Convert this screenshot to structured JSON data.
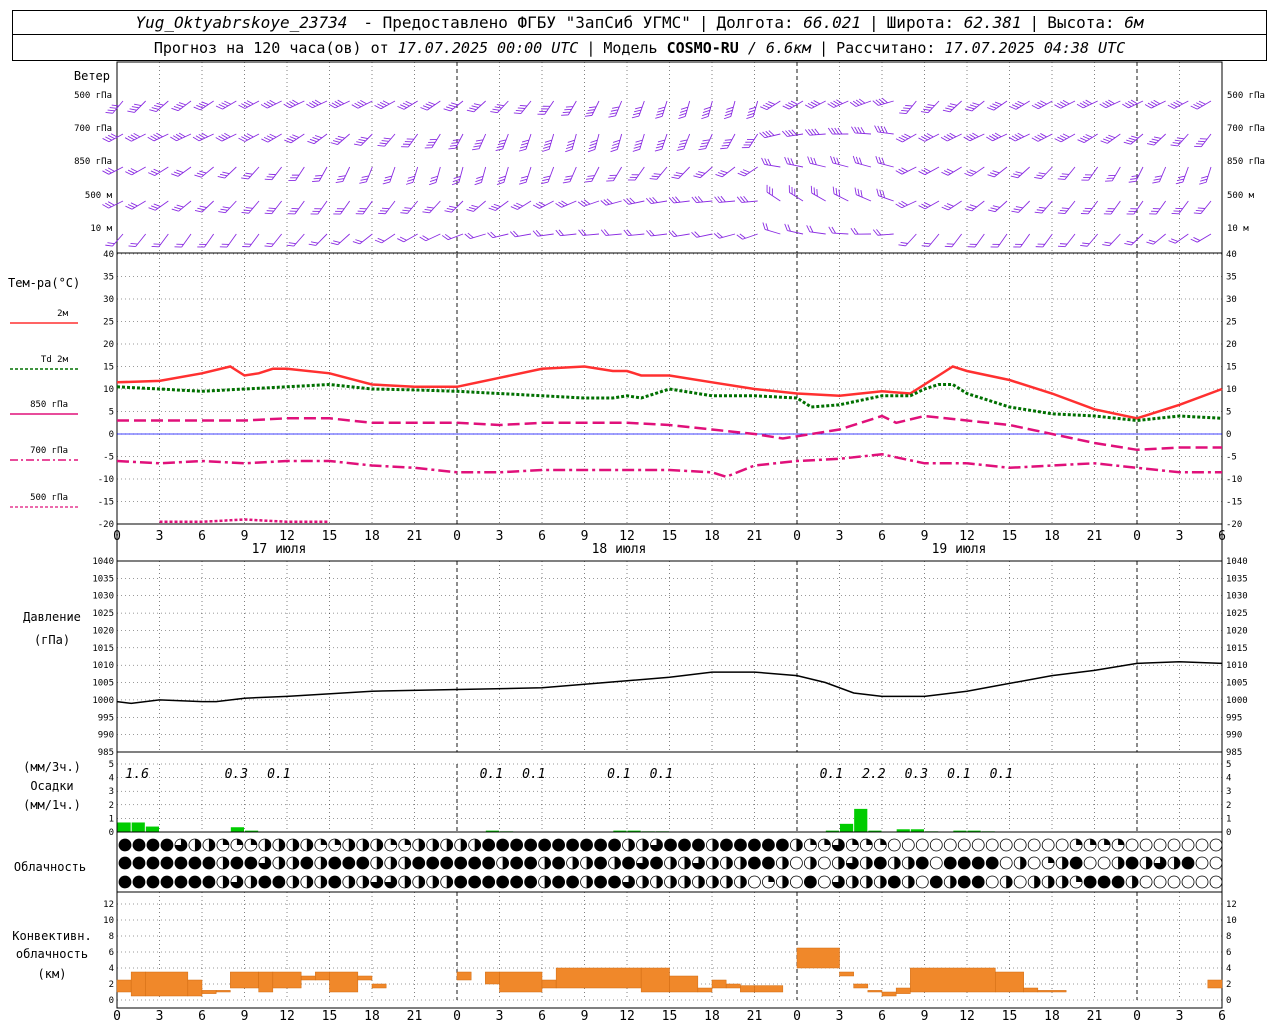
{
  "header": {
    "station": "Yug_Oktyabrskoye_23734",
    "provided": "- Предоставлено ФГБУ \"ЗапСиб УГМС\"",
    "lon_label": "Долгота:",
    "lon": "66.021",
    "lat_label": "Широта:",
    "lat": "62.381",
    "alt_label": "Высота:",
    "alt": "6м",
    "forecast_label": "Прогноз на 120 часа(ов) от",
    "forecast_from": "17.07.2025 00:00 UTC",
    "model_label": "Модель",
    "model": "COSMO-RU",
    "resolution": "/ 6.6км",
    "calc_label": "Рассчитано:",
    "calc_time": "17.07.2025 04:38 UTC"
  },
  "panels": {
    "wind": {
      "title": "Ветер",
      "levels": [
        "500 гПа",
        "700 гПа",
        "850 гПа",
        "500 м",
        "10  м"
      ],
      "barb_color": "#8a2be2"
    },
    "temp": {
      "title": "Тем-ра(°С)",
      "legend": [
        "2м",
        "Td  2м",
        "850 гПа",
        "700 гПа",
        "500 гПа"
      ],
      "yticks": [
        40,
        35,
        30,
        25,
        20,
        15,
        10,
        5,
        0,
        -5,
        -10,
        -15,
        -20
      ]
    },
    "pressure": {
      "title": "Давление",
      "unit": "(гПа)",
      "yticks": [
        1040,
        1035,
        1030,
        1025,
        1020,
        1015,
        1010,
        1005,
        1000,
        995,
        990,
        985
      ]
    },
    "precip": {
      "unit_3h": "(мм/3ч.)",
      "title": "Осадки",
      "unit_1h": "(мм/1ч.)",
      "yticks": [
        5,
        4,
        3,
        2,
        1,
        0
      ],
      "labels": [
        {
          "h": 1,
          "text": "1.6"
        },
        {
          "h": 8,
          "text": "0.3"
        },
        {
          "h": 11,
          "text": "0.1"
        },
        {
          "h": 26,
          "text": "0.1"
        },
        {
          "h": 29,
          "text": "0.1"
        },
        {
          "h": 35,
          "text": "0.1"
        },
        {
          "h": 38,
          "text": "0.1"
        },
        {
          "h": 50,
          "text": "0.1"
        },
        {
          "h": 53,
          "text": "2.2"
        },
        {
          "h": 56,
          "text": "0.3"
        },
        {
          "h": 59,
          "text": "0.1"
        },
        {
          "h": 62,
          "text": "0.1"
        }
      ]
    },
    "cloud": {
      "title": "Облачность"
    },
    "conv": {
      "title1": "Конвективн.",
      "title2": "облачность",
      "unit": "(км)",
      "yticks": [
        12,
        10,
        8,
        6,
        4,
        2,
        0
      ]
    }
  },
  "x_axis": {
    "hour_labels": [
      "0",
      "3",
      "6",
      "9",
      "12",
      "15",
      "18",
      "21",
      "0",
      "3",
      "6",
      "9",
      "12",
      "15",
      "18",
      "21",
      "0",
      "3",
      "6",
      "9",
      "12",
      "15",
      "18",
      "21",
      "0",
      "3",
      "6"
    ],
    "day_labels": [
      {
        "h": 12,
        "text": "17 июля"
      },
      {
        "h": 36,
        "text": "18 июля"
      },
      {
        "h": 60,
        "text": "19 июля"
      }
    ]
  },
  "colors": {
    "t2m": "#ff3030",
    "td2m": "#007000",
    "t850": "#e0107a",
    "t700": "#e0107a",
    "t500": "#e0107a",
    "zero_line": "#0000ff",
    "precip": "#00cc00",
    "conv": "#f0882a"
  },
  "chart_data": [
    {
      "type": "line",
      "title": "Тем-ра(°С)",
      "x_unit": "hours from 17.07.2025 00:00 UTC",
      "ylim": [
        -20,
        40
      ],
      "series": [
        {
          "name": "2м",
          "x": [
            0,
            3,
            6,
            8,
            9,
            10,
            11,
            12,
            15,
            18,
            21,
            24,
            27,
            30,
            33,
            35,
            36,
            37,
            39,
            42,
            45,
            48,
            51,
            54,
            56,
            57,
            58,
            59,
            60,
            63,
            66,
            69,
            72,
            75,
            78
          ],
          "values": [
            11.5,
            11.8,
            13.5,
            15,
            13,
            13.5,
            14.5,
            14.5,
            13.5,
            11,
            10.5,
            10.5,
            12.5,
            14.5,
            15,
            14,
            14,
            13,
            13,
            11.5,
            10,
            9,
            8.5,
            9.5,
            9,
            11,
            13,
            15,
            14,
            12,
            9,
            5.5,
            3.5,
            6.5,
            10
          ]
        },
        {
          "name": "Td  2м",
          "x": [
            0,
            3,
            6,
            9,
            12,
            15,
            18,
            21,
            24,
            27,
            30,
            33,
            35,
            36,
            37,
            39,
            42,
            45,
            48,
            49,
            51,
            54,
            56,
            57,
            58,
            59,
            60,
            63,
            66,
            69,
            72,
            75,
            78
          ],
          "values": [
            10.5,
            10,
            9.5,
            10,
            10.5,
            11,
            10,
            9.8,
            9.5,
            9,
            8.5,
            8,
            8,
            8.5,
            8,
            10,
            8.5,
            8.5,
            8,
            6,
            6.5,
            8.5,
            8.5,
            10,
            11,
            11,
            9,
            6,
            4.5,
            4,
            3,
            4,
            3.5
          ]
        },
        {
          "name": "850 гПа",
          "x": [
            0,
            3,
            6,
            9,
            12,
            15,
            18,
            21,
            24,
            27,
            30,
            33,
            36,
            39,
            42,
            45,
            47,
            48,
            51,
            54,
            55,
            57,
            60,
            63,
            66,
            69,
            72,
            75,
            78
          ],
          "values": [
            3,
            3,
            3,
            3,
            3.5,
            3.5,
            2.5,
            2.5,
            2.5,
            2,
            2.5,
            2.5,
            2.5,
            2,
            1,
            0,
            -1,
            -0.5,
            1,
            4,
            2.5,
            4,
            3,
            2,
            0,
            -2,
            -3.5,
            -3,
            -3
          ]
        },
        {
          "name": "700 гПа",
          "x": [
            0,
            3,
            6,
            9,
            12,
            15,
            18,
            21,
            24,
            27,
            30,
            33,
            36,
            39,
            42,
            43,
            45,
            48,
            51,
            54,
            57,
            60,
            63,
            66,
            69,
            72,
            75,
            78
          ],
          "values": [
            -6,
            -6.5,
            -6,
            -6.5,
            -6,
            -6,
            -7,
            -7.5,
            -8.5,
            -8.5,
            -8,
            -8,
            -8,
            -8,
            -8.5,
            -9.5,
            -7,
            -6,
            -5.5,
            -4.5,
            -6.5,
            -6.5,
            -7.5,
            -7,
            -6.5,
            -7.5,
            -8.5,
            -8.5
          ]
        },
        {
          "name": "500 гПа",
          "x": [
            3,
            6,
            9,
            12,
            15
          ],
          "values": [
            -19.5,
            -19.5,
            -19,
            -19.5,
            -19.5
          ]
        }
      ]
    },
    {
      "type": "line",
      "title": "Давление",
      "ylabel": "(гПа)",
      "ylim": [
        985,
        1040
      ],
      "series": [
        {
          "name": "",
          "x": [
            0,
            1,
            3,
            6,
            7,
            9,
            12,
            18,
            24,
            30,
            33,
            36,
            39,
            42,
            45,
            48,
            50,
            52,
            54,
            57,
            60,
            62,
            66,
            69,
            72,
            75,
            78
          ],
          "values": [
            999.5,
            999,
            1000,
            999.5,
            999.5,
            1000.5,
            1001,
            1002.5,
            1003,
            1003.5,
            1004.5,
            1005.5,
            1006.5,
            1008,
            1008,
            1007,
            1005,
            1002,
            1001,
            1001,
            1002.5,
            1004,
            1007,
            1008.5,
            1010.5,
            1011,
            1010.5
          ]
        }
      ]
    },
    {
      "type": "bar",
      "title": "Осадки",
      "ylabel": "(мм/1ч.)",
      "ylim": [
        0,
        5
      ],
      "x": [
        0,
        1,
        2,
        8,
        9,
        26,
        27,
        35,
        36,
        37,
        38,
        50,
        51,
        52,
        53,
        55,
        56,
        57,
        59,
        60,
        61
      ],
      "values": [
        0.7,
        0.7,
        0.4,
        0.35,
        0.1,
        0.1,
        0.05,
        0.1,
        0.1,
        0.05,
        0.05,
        0.1,
        0.6,
        1.7,
        0.1,
        0.2,
        0.2,
        0.05,
        0.1,
        0.1,
        0.05
      ]
    },
    {
      "type": "bar",
      "title": "Облачность",
      "rows": [
        "4444322111222211222112222244444444442234442444442113111000000000000011110000000002000",
        "4444444244322424442224444442442422424342232224420202324224044440201240024232400012000022",
        "4444444232442224223322224444442442443222222220120403222420424402022214442000000000003244"
      ]
    },
    {
      "type": "bar",
      "title": "Конвективн. облачность",
      "ylabel": "(км)",
      "ylim": [
        0,
        12
      ],
      "segments": [
        [
          0,
          1,
          1,
          2.5
        ],
        [
          1,
          2,
          0.5,
          3.5
        ],
        [
          2,
          5,
          0.5,
          3.5
        ],
        [
          5,
          6,
          0.5,
          2.5
        ],
        [
          6,
          7,
          0.8,
          1.2
        ],
        [
          7,
          8,
          1,
          1.2
        ],
        [
          8,
          10,
          1.5,
          3.5
        ],
        [
          10,
          11,
          1,
          3.5
        ],
        [
          11,
          13,
          1.5,
          3.5
        ],
        [
          13,
          14,
          2.5,
          3
        ],
        [
          14,
          15,
          2.5,
          3.5
        ],
        [
          15,
          17,
          1,
          3.5
        ],
        [
          17,
          18,
          2.5,
          3
        ],
        [
          18,
          19,
          1.5,
          2
        ],
        [
          24,
          25,
          2.5,
          3.5
        ],
        [
          26,
          27,
          2,
          3.5
        ],
        [
          27,
          30,
          1,
          3.5
        ],
        [
          30,
          31,
          1.5,
          2.5
        ],
        [
          31,
          37,
          1.5,
          4
        ],
        [
          37,
          39,
          1,
          4
        ],
        [
          39,
          41,
          1,
          3
        ],
        [
          41,
          42,
          1,
          1.5
        ],
        [
          42,
          43,
          1.5,
          2.5
        ],
        [
          43,
          44,
          1.5,
          2
        ],
        [
          44,
          45,
          1,
          1.8
        ],
        [
          45,
          47,
          1,
          1.8
        ],
        [
          48,
          51,
          4,
          6.5
        ],
        [
          51,
          52,
          3,
          3.5
        ],
        [
          52,
          53,
          1.5,
          2
        ],
        [
          53,
          54,
          1,
          1.2
        ],
        [
          54,
          55,
          0.5,
          1
        ],
        [
          55,
          56,
          0.8,
          1.5
        ],
        [
          56,
          62,
          1,
          4
        ],
        [
          62,
          64,
          1,
          3.5
        ],
        [
          64,
          65,
          1,
          1.5
        ],
        [
          65,
          67,
          1,
          1.2
        ],
        [
          77,
          78,
          1.5,
          2.5
        ]
      ]
    }
  ]
}
